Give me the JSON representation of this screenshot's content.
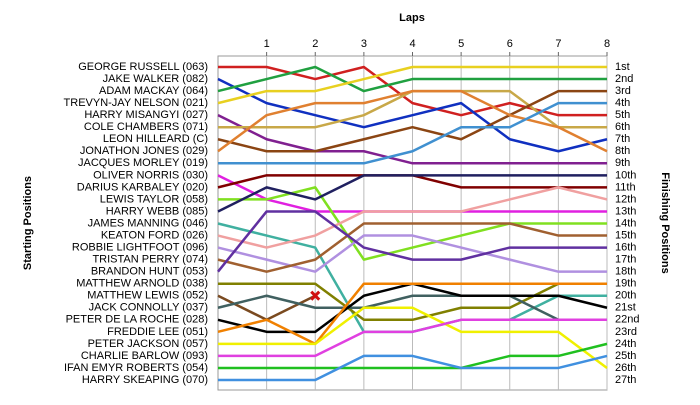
{
  "chart_data": {
    "type": "lap-chart",
    "title": "Laps",
    "y_label": "Starting Positions",
    "y2_label": "Finishing Positions",
    "xlim": [
      0,
      8
    ],
    "xticks": [
      1,
      2,
      3,
      4,
      5,
      6,
      7,
      8
    ],
    "ylim": [
      1,
      27
    ],
    "y_inverted": true,
    "grid": true,
    "finishing_labels": [
      "1st",
      "2nd",
      "3rd",
      "4th",
      "5th",
      "6th",
      "7th",
      "8th",
      "9th",
      "10th",
      "11th",
      "12th",
      "13th",
      "14th",
      "15th",
      "16th",
      "17th",
      "18th",
      "19th",
      "20th",
      "21st",
      "22nd",
      "23rd",
      "24th",
      "25th",
      "26th",
      "27th"
    ],
    "series": [
      {
        "name": "GEORGE RUSSELL (063)",
        "color": "#d02020",
        "values": [
          1,
          1,
          2,
          1,
          4,
          5,
          4,
          5,
          5
        ]
      },
      {
        "name": "JAKE WALKER (082)",
        "color": "#1030c0",
        "values": [
          2,
          4,
          5,
          6,
          5,
          4,
          7,
          8,
          7
        ]
      },
      {
        "name": "ADAM MACKAY (064)",
        "color": "#20a040",
        "values": [
          3,
          2,
          1,
          3,
          2,
          2,
          2,
          2,
          2
        ]
      },
      {
        "name": "TREVYN-JAY NELSON (021)",
        "color": "#e8d020",
        "values": [
          4,
          3,
          3,
          2,
          1,
          1,
          1,
          1,
          1
        ]
      },
      {
        "name": "HARRY MISANGYI (027)",
        "color": "#802090",
        "values": [
          5,
          7,
          8,
          8,
          9,
          9,
          9,
          9,
          9
        ]
      },
      {
        "name": "COLE CHAMBERS (071)",
        "color": "#c8a848",
        "values": [
          6,
          6,
          6,
          5,
          3,
          3,
          3,
          6,
          6
        ]
      },
      {
        "name": "LEON HILLEARD (C)",
        "color": "#8b4513",
        "values": [
          7,
          8,
          8,
          7,
          6,
          7,
          5,
          3,
          3
        ]
      },
      {
        "name": "JONATHON JONES (029)",
        "color": "#e08030",
        "values": [
          8,
          5,
          4,
          4,
          3,
          3,
          5,
          6,
          8
        ]
      },
      {
        "name": "JACQUES MORLEY (019)",
        "color": "#4090d0",
        "values": [
          9,
          9,
          9,
          9,
          8,
          6,
          6,
          4,
          4
        ]
      },
      {
        "name": "OLIVER NORRIS (030)",
        "color": "#e020e0",
        "values": [
          10,
          12,
          13,
          13,
          13,
          13,
          13,
          13,
          13
        ]
      },
      {
        "name": "DARIUS KARBALEY (020)",
        "color": "#800000",
        "values": [
          11,
          10,
          10,
          10,
          10,
          11,
          11,
          11,
          11
        ]
      },
      {
        "name": "LEWIS TAYLOR (058)",
        "color": "#80e020",
        "values": [
          12,
          12,
          11,
          17,
          16,
          15,
          14,
          14,
          14
        ]
      },
      {
        "name": "HARRY WEBB (085)",
        "color": "#202060",
        "values": [
          13,
          11,
          12,
          10,
          10,
          10,
          10,
          10,
          10
        ]
      },
      {
        "name": "JAMES MANNING (046)",
        "color": "#40b0a0",
        "values": [
          14,
          15,
          16,
          23,
          23,
          22,
          22,
          20,
          20
        ]
      },
      {
        "name": "KEATON FORD (026)",
        "color": "#f0a0a0",
        "values": [
          15,
          16,
          15,
          13,
          13,
          13,
          12,
          11,
          12
        ]
      },
      {
        "name": "ROBBIE LIGHTFOOT (096)",
        "color": "#b090e0",
        "values": [
          16,
          17,
          18,
          15,
          15,
          16,
          17,
          18,
          18
        ]
      },
      {
        "name": "TRISTAN PERRY (074)",
        "color": "#a06030",
        "values": [
          17,
          18,
          17,
          14,
          14,
          14,
          14,
          15,
          15
        ]
      },
      {
        "name": "BRANDON HUNT (053)",
        "color": "#6030a0",
        "values": [
          18,
          13,
          13,
          16,
          17,
          17,
          16,
          16,
          16
        ]
      },
      {
        "name": "MATTHEW ARNOLD (038)",
        "color": "#808000",
        "values": [
          19,
          19,
          19,
          22,
          22,
          21,
          21,
          19,
          19
        ]
      },
      {
        "name": "MATTHEW LEWIS (052)",
        "color": "#7a4a20",
        "values": [
          20,
          22,
          20,
          null,
          null,
          null,
          null,
          null,
          null
        ]
      },
      {
        "name": "JACK CONNOLLY (037)",
        "color": "#406060",
        "values": [
          21,
          20,
          21,
          21,
          20,
          20,
          20,
          22,
          22
        ]
      },
      {
        "name": "PETER DE LA ROCHE (028)",
        "color": "#000000",
        "values": [
          22,
          23,
          23,
          20,
          19,
          20,
          20,
          20,
          21
        ]
      },
      {
        "name": "FREDDIE LEE (051)",
        "color": "#f08000",
        "values": [
          23,
          22,
          24,
          19,
          19,
          19,
          19,
          19,
          19
        ]
      },
      {
        "name": "PETER JACKSON (057)",
        "color": "#f0f000",
        "values": [
          24,
          24,
          24,
          21,
          21,
          23,
          23,
          23,
          26
        ]
      },
      {
        "name": "CHARLIE BARLOW (093)",
        "color": "#e040e0",
        "values": [
          25,
          25,
          25,
          23,
          23,
          22,
          22,
          22,
          22
        ]
      },
      {
        "name": "IFAN EMYR ROBERTS (054)",
        "color": "#20c020",
        "values": [
          26,
          26,
          26,
          26,
          26,
          26,
          25,
          25,
          24
        ]
      },
      {
        "name": "HARRY SKEAPING (070)",
        "color": "#4090e0",
        "values": [
          27,
          27,
          27,
          25,
          25,
          26,
          26,
          26,
          25
        ]
      }
    ]
  }
}
